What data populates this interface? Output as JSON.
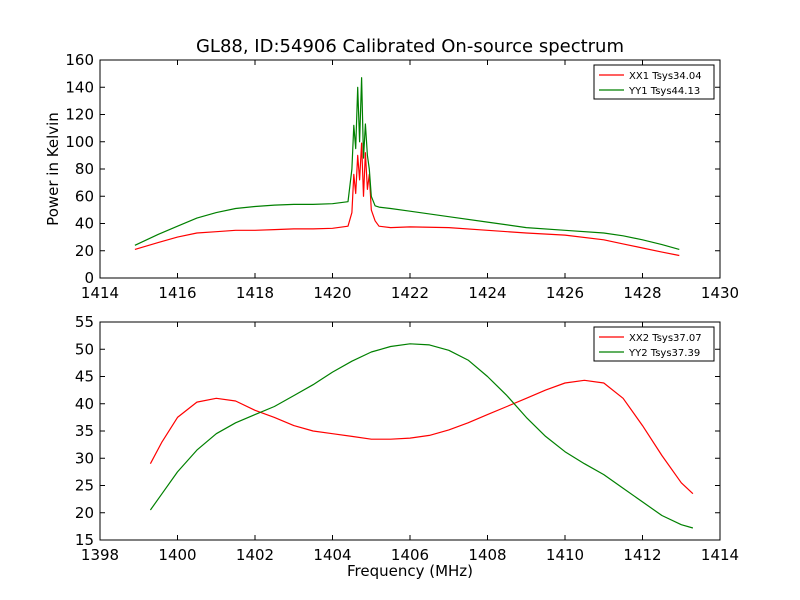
{
  "figure_title": "GL88, ID:54906 Calibrated On-source spectrum",
  "chart_data": [
    {
      "type": "line",
      "title": "GL88, ID:54906 Calibrated On-source spectrum",
      "xlabel": "",
      "ylabel": "Power in Kelvin",
      "xlim": [
        1414,
        1430
      ],
      "ylim": [
        0,
        160
      ],
      "xticks": [
        1414,
        1416,
        1418,
        1420,
        1422,
        1424,
        1426,
        1428,
        1430
      ],
      "yticks": [
        0,
        20,
        40,
        60,
        80,
        100,
        120,
        140,
        160
      ],
      "grid": false,
      "legend_position": "top-right",
      "series": [
        {
          "name": "XX1 Tsys34.04",
          "color": "#ff0000",
          "x": [
            1414.9,
            1415.5,
            1416.0,
            1416.5,
            1417.0,
            1417.5,
            1418.0,
            1418.5,
            1419.0,
            1419.5,
            1420.0,
            1420.4,
            1420.5,
            1420.55,
            1420.6,
            1420.65,
            1420.7,
            1420.75,
            1420.8,
            1420.85,
            1420.9,
            1420.95,
            1421.0,
            1421.1,
            1421.2,
            1421.5,
            1422.0,
            1423.0,
            1424.0,
            1425.0,
            1426.0,
            1427.0,
            1427.5,
            1428.0,
            1428.5,
            1428.95
          ],
          "y": [
            21,
            26,
            30,
            33,
            34,
            35,
            35,
            35.5,
            36,
            36,
            36.5,
            38,
            48,
            76,
            62,
            90,
            72,
            99,
            60,
            92,
            65,
            76,
            50,
            42,
            38,
            37,
            37.5,
            37,
            35,
            33,
            31.5,
            28,
            25,
            22,
            19,
            16.5
          ]
        },
        {
          "name": "YY1 Tsys44.13",
          "color": "#008000",
          "x": [
            1414.9,
            1415.5,
            1416.0,
            1416.5,
            1417.0,
            1417.5,
            1418.0,
            1418.5,
            1419.0,
            1419.5,
            1420.0,
            1420.4,
            1420.5,
            1420.55,
            1420.6,
            1420.65,
            1420.7,
            1420.75,
            1420.8,
            1420.85,
            1420.9,
            1420.95,
            1421.0,
            1421.1,
            1421.2,
            1421.5,
            1422.0,
            1423.0,
            1424.0,
            1425.0,
            1426.0,
            1427.0,
            1427.5,
            1428.0,
            1428.5,
            1428.95
          ],
          "y": [
            24,
            32,
            38,
            44,
            48,
            51,
            52.5,
            53.5,
            54,
            54,
            54.5,
            56,
            80,
            112,
            95,
            140,
            100,
            147,
            88,
            113,
            90,
            80,
            60,
            53,
            52,
            51,
            49,
            45,
            41,
            37,
            35,
            33,
            31,
            28,
            24.5,
            21
          ]
        }
      ]
    },
    {
      "type": "line",
      "title": "",
      "xlabel": "Frequency (MHz)",
      "ylabel": "",
      "xlim": [
        1398,
        1414
      ],
      "ylim": [
        15,
        55
      ],
      "xticks": [
        1398,
        1400,
        1402,
        1404,
        1406,
        1408,
        1410,
        1412,
        1414
      ],
      "yticks": [
        15,
        20,
        25,
        30,
        35,
        40,
        45,
        50,
        55
      ],
      "grid": false,
      "legend_position": "top-right",
      "series": [
        {
          "name": "XX2 Tsys37.07",
          "color": "#ff0000",
          "x": [
            1399.3,
            1399.6,
            1400.0,
            1400.5,
            1401.0,
            1401.5,
            1402.0,
            1402.5,
            1403.0,
            1403.5,
            1404.0,
            1404.5,
            1405.0,
            1405.5,
            1406.0,
            1406.5,
            1407.0,
            1407.5,
            1408.0,
            1408.5,
            1409.0,
            1409.5,
            1410.0,
            1410.5,
            1411.0,
            1411.5,
            1412.0,
            1412.5,
            1413.0,
            1413.3
          ],
          "y": [
            29,
            33,
            37.5,
            40.3,
            41,
            40.5,
            38.8,
            37.5,
            36,
            35,
            34.5,
            34,
            33.5,
            33.5,
            33.7,
            34.2,
            35.2,
            36.5,
            38,
            39.5,
            41,
            42.5,
            43.8,
            44.3,
            43.8,
            41,
            36,
            30.5,
            25.5,
            23.5
          ]
        },
        {
          "name": "YY2 Tsys37.39",
          "color": "#008000",
          "x": [
            1399.3,
            1399.6,
            1400.0,
            1400.5,
            1401.0,
            1401.5,
            1402.0,
            1402.5,
            1403.0,
            1403.5,
            1404.0,
            1404.5,
            1405.0,
            1405.5,
            1406.0,
            1406.5,
            1407.0,
            1407.5,
            1408.0,
            1408.5,
            1409.0,
            1409.5,
            1410.0,
            1410.5,
            1411.0,
            1411.5,
            1412.0,
            1412.5,
            1413.0,
            1413.3
          ],
          "y": [
            20.5,
            23.5,
            27.5,
            31.5,
            34.5,
            36.5,
            38,
            39.5,
            41.5,
            43.5,
            45.8,
            47.8,
            49.5,
            50.5,
            51,
            50.8,
            49.8,
            48,
            45,
            41.5,
            37.5,
            34,
            31.2,
            29,
            27,
            24.5,
            22,
            19.5,
            17.8,
            17.2
          ]
        }
      ]
    }
  ]
}
